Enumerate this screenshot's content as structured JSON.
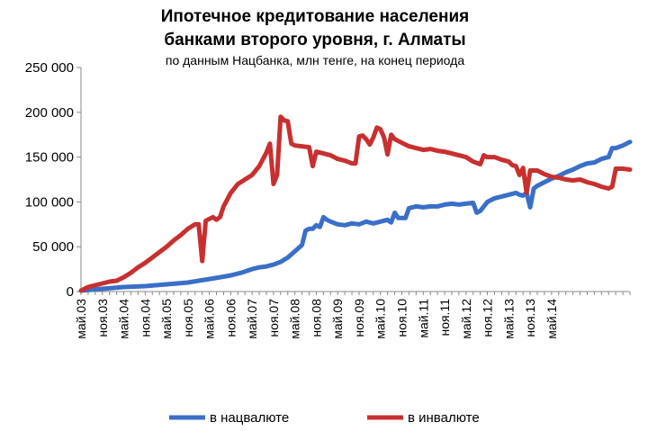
{
  "chart_data": {
    "type": "line",
    "title_line1": "Ипотечное кредитование населения",
    "title_line2": "банками второго уровня, г. Алматы",
    "subtitle": "по данным Нацбанка, млн тенге, на конец периода",
    "ylim": [
      0,
      250000
    ],
    "y_ticks": [
      "0",
      "50 000",
      "100 000",
      "150 000",
      "200 000",
      "250 000"
    ],
    "x_ticks": [
      "май.03",
      "ноя.03",
      "май.04",
      "ноя.04",
      "май.05",
      "ноя.05",
      "май.06",
      "ноя.06",
      "май.07",
      "ноя.07",
      "май.08",
      "ноя.08",
      "май.09",
      "ноя.09",
      "май.10",
      "ноя.10",
      "май.11",
      "ноя.11",
      "май.12",
      "ноя.12",
      "май.13",
      "ноя.13",
      "май.14"
    ],
    "grid": false,
    "legend": "bottom",
    "series": [
      {
        "name": "в нацвалюте",
        "color": "#3a6fc8",
        "points": [
          [
            0,
            1000
          ],
          [
            3,
            2000
          ],
          [
            6,
            3000
          ],
          [
            9,
            4000
          ],
          [
            12,
            5000
          ],
          [
            15,
            5500
          ],
          [
            18,
            6000
          ],
          [
            21,
            7000
          ],
          [
            24,
            8000
          ],
          [
            27,
            9000
          ],
          [
            30,
            10000
          ],
          [
            33,
            12000
          ],
          [
            36,
            14000
          ],
          [
            39,
            16000
          ],
          [
            42,
            18000
          ],
          [
            45,
            21000
          ],
          [
            48,
            25000
          ],
          [
            50,
            27000
          ],
          [
            52,
            28000
          ],
          [
            54,
            30000
          ],
          [
            56,
            33000
          ],
          [
            58,
            38000
          ],
          [
            60,
            45000
          ],
          [
            62,
            52000
          ],
          [
            63,
            68000
          ],
          [
            64,
            70000
          ],
          [
            65,
            70000
          ],
          [
            66,
            74000
          ],
          [
            67,
            72000
          ],
          [
            68,
            83000
          ],
          [
            69,
            80000
          ],
          [
            70,
            78000
          ],
          [
            72,
            75000
          ],
          [
            74,
            74000
          ],
          [
            76,
            76000
          ],
          [
            78,
            75000
          ],
          [
            80,
            78000
          ],
          [
            82,
            76000
          ],
          [
            84,
            78000
          ],
          [
            86,
            80000
          ],
          [
            87,
            77000
          ],
          [
            88,
            88000
          ],
          [
            89,
            82000
          ],
          [
            90,
            82000
          ],
          [
            91,
            82000
          ],
          [
            92,
            93000
          ],
          [
            94,
            95000
          ],
          [
            96,
            94000
          ],
          [
            98,
            95000
          ],
          [
            100,
            95000
          ],
          [
            102,
            97000
          ],
          [
            104,
            98000
          ],
          [
            106,
            97000
          ],
          [
            108,
            98000
          ],
          [
            110,
            99000
          ],
          [
            111,
            88000
          ],
          [
            112,
            90000
          ],
          [
            114,
            100000
          ],
          [
            116,
            104000
          ],
          [
            118,
            106000
          ],
          [
            120,
            108000
          ],
          [
            122,
            110000
          ],
          [
            123,
            108000
          ],
          [
            124,
            107000
          ],
          [
            125,
            110000
          ],
          [
            126,
            94000
          ],
          [
            127,
            115000
          ],
          [
            128,
            118000
          ],
          [
            130,
            122000
          ],
          [
            132,
            126000
          ],
          [
            134,
            129000
          ],
          [
            136,
            133000
          ],
          [
            138,
            136000
          ],
          [
            140,
            140000
          ],
          [
            142,
            143000
          ],
          [
            144,
            144000
          ],
          [
            146,
            148000
          ],
          [
            148,
            150000
          ],
          [
            149,
            160000
          ],
          [
            150,
            160000
          ],
          [
            152,
            163000
          ],
          [
            154,
            167000
          ]
        ]
      },
      {
        "name": "в инвалюте",
        "color": "#c83030",
        "points": [
          [
            0,
            1000
          ],
          [
            2,
            5000
          ],
          [
            4,
            7000
          ],
          [
            6,
            9000
          ],
          [
            8,
            11000
          ],
          [
            10,
            12000
          ],
          [
            12,
            16000
          ],
          [
            14,
            21000
          ],
          [
            16,
            27000
          ],
          [
            18,
            32000
          ],
          [
            20,
            38000
          ],
          [
            22,
            44000
          ],
          [
            24,
            50000
          ],
          [
            26,
            57000
          ],
          [
            28,
            63000
          ],
          [
            30,
            70000
          ],
          [
            32,
            75000
          ],
          [
            33,
            75000
          ],
          [
            34,
            34000
          ],
          [
            35,
            79000
          ],
          [
            36,
            81000
          ],
          [
            37,
            83000
          ],
          [
            38,
            80000
          ],
          [
            39,
            83000
          ],
          [
            40,
            95000
          ],
          [
            42,
            110000
          ],
          [
            44,
            120000
          ],
          [
            46,
            125000
          ],
          [
            48,
            130000
          ],
          [
            50,
            140000
          ],
          [
            52,
            155000
          ],
          [
            53,
            165000
          ],
          [
            54,
            120000
          ],
          [
            55,
            130000
          ],
          [
            56,
            195000
          ],
          [
            57,
            191000
          ],
          [
            58,
            190000
          ],
          [
            59,
            165000
          ],
          [
            60,
            163000
          ],
          [
            62,
            162000
          ],
          [
            64,
            161000
          ],
          [
            65,
            140000
          ],
          [
            66,
            156000
          ],
          [
            68,
            154000
          ],
          [
            70,
            152000
          ],
          [
            72,
            148000
          ],
          [
            74,
            146000
          ],
          [
            76,
            143000
          ],
          [
            77,
            143000
          ],
          [
            78,
            173000
          ],
          [
            79,
            174000
          ],
          [
            80,
            170000
          ],
          [
            81,
            164000
          ],
          [
            82,
            172000
          ],
          [
            83,
            183000
          ],
          [
            84,
            181000
          ],
          [
            85,
            172000
          ],
          [
            86,
            153000
          ],
          [
            87,
            175000
          ],
          [
            88,
            170000
          ],
          [
            90,
            166000
          ],
          [
            92,
            162000
          ],
          [
            94,
            160000
          ],
          [
            96,
            158000
          ],
          [
            98,
            159000
          ],
          [
            100,
            157000
          ],
          [
            102,
            156000
          ],
          [
            104,
            154000
          ],
          [
            106,
            152000
          ],
          [
            108,
            150000
          ],
          [
            110,
            145000
          ],
          [
            112,
            142000
          ],
          [
            113,
            152000
          ],
          [
            114,
            150000
          ],
          [
            116,
            150000
          ],
          [
            118,
            147000
          ],
          [
            120,
            145000
          ],
          [
            121,
            141000
          ],
          [
            122,
            140000
          ],
          [
            123,
            130000
          ],
          [
            124,
            138000
          ],
          [
            125,
            110000
          ],
          [
            126,
            135000
          ],
          [
            128,
            135000
          ],
          [
            130,
            131000
          ],
          [
            132,
            128000
          ],
          [
            134,
            127000
          ],
          [
            136,
            125000
          ],
          [
            138,
            124000
          ],
          [
            140,
            125000
          ],
          [
            142,
            122000
          ],
          [
            144,
            120000
          ],
          [
            146,
            117000
          ],
          [
            148,
            115000
          ],
          [
            149,
            117000
          ],
          [
            150,
            137000
          ],
          [
            152,
            137000
          ],
          [
            154,
            136000
          ]
        ]
      }
    ]
  }
}
